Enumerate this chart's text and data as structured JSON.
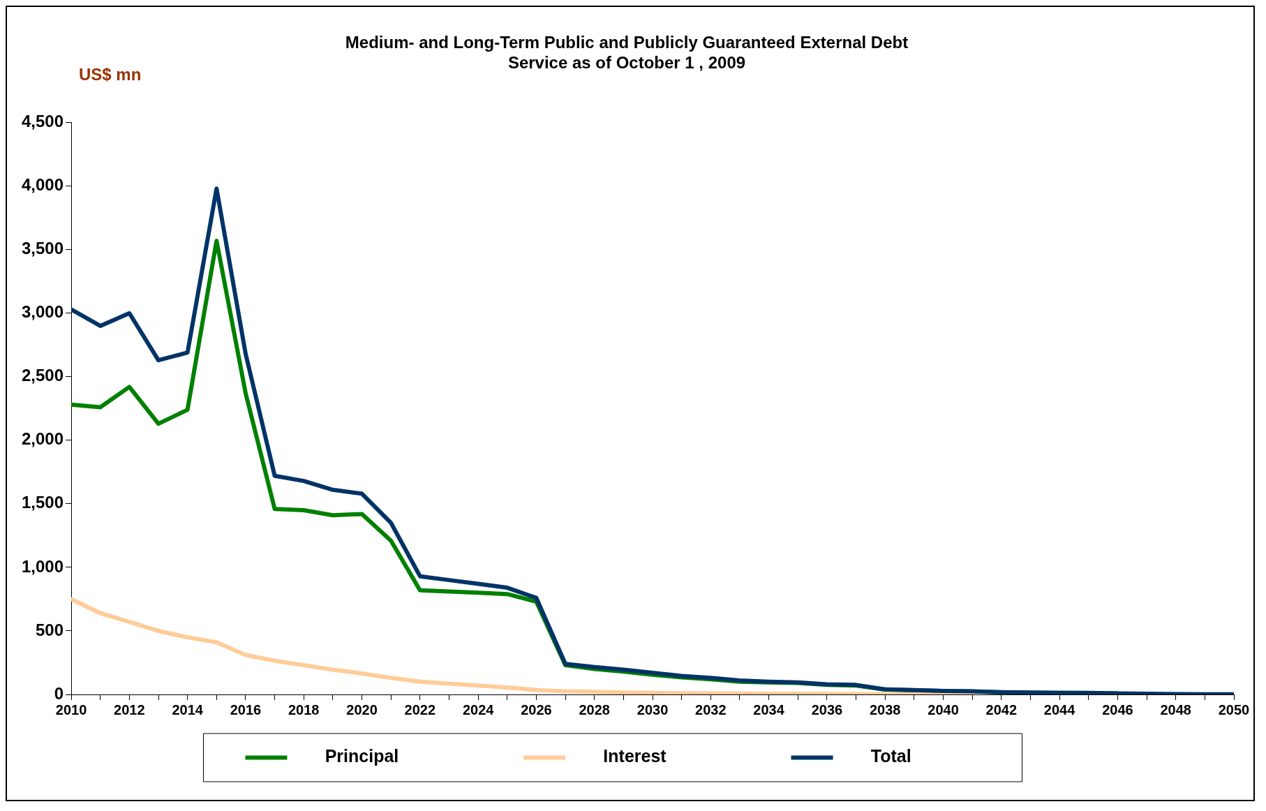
{
  "chart_data": {
    "type": "line",
    "title": "Medium- and Long-Term Public and Publicly Guaranteed External Debt\nService as of October 1 , 2009",
    "ylabel": "US$ mn",
    "x": [
      2010,
      2011,
      2012,
      2013,
      2014,
      2015,
      2016,
      2017,
      2018,
      2019,
      2020,
      2021,
      2022,
      2023,
      2024,
      2025,
      2026,
      2027,
      2028,
      2029,
      2030,
      2031,
      2032,
      2033,
      2034,
      2035,
      2036,
      2037,
      2038,
      2039,
      2040,
      2041,
      2042,
      2043,
      2044,
      2045,
      2046,
      2047,
      2048,
      2049,
      2050
    ],
    "series": [
      {
        "name": "Principal",
        "color": "#008000",
        "values": [
          2280,
          2260,
          2420,
          2130,
          2240,
          3570,
          2370,
          1460,
          1450,
          1410,
          1420,
          1210,
          820,
          810,
          800,
          790,
          730,
          230,
          200,
          180,
          155,
          135,
          120,
          100,
          95,
          90,
          75,
          70,
          38,
          33,
          27,
          24,
          17,
          14,
          12,
          11,
          8,
          null,
          null,
          null,
          null
        ]
      },
      {
        "name": "Interest",
        "color": "#ffcc99",
        "values": [
          750,
          640,
          570,
          500,
          450,
          410,
          310,
          265,
          230,
          195,
          165,
          130,
          100,
          85,
          70,
          55,
          35,
          25,
          20,
          15,
          12,
          10,
          8,
          7,
          6,
          5,
          4,
          3,
          2,
          2,
          1,
          1,
          null,
          null,
          null,
          null,
          null,
          null,
          null,
          null,
          null
        ]
      },
      {
        "name": "Total",
        "color": "#003366",
        "values": [
          3030,
          2900,
          3000,
          2630,
          2690,
          3980,
          2680,
          1720,
          1680,
          1610,
          1580,
          1350,
          930,
          900,
          870,
          840,
          760,
          240,
          215,
          195,
          170,
          145,
          130,
          110,
          100,
          95,
          80,
          75,
          40,
          35,
          28,
          25,
          18,
          15,
          12,
          12,
          8,
          6,
          3,
          2,
          2
        ]
      }
    ],
    "xlim": [
      2010,
      2050
    ],
    "xticks": [
      2010,
      {
        "value": 2011,
        "label": null
      },
      2012,
      {
        "value": 2013,
        "label": null
      },
      2014,
      {
        "value": 2015,
        "label": null
      },
      2016,
      {
        "value": 2017,
        "label": null
      },
      2018,
      {
        "value": 2019,
        "label": null
      },
      2020,
      {
        "value": 2021,
        "label": null
      },
      2022,
      {
        "value": 2023,
        "label": null
      },
      2024,
      {
        "value": 2025,
        "label": null
      },
      2026,
      {
        "value": 2027,
        "label": null
      },
      2028,
      {
        "value": 2029,
        "label": null
      },
      2030,
      {
        "value": 2031,
        "label": null
      },
      2032,
      {
        "value": 2033,
        "label": null
      },
      2034,
      {
        "value": 2035,
        "label": null
      },
      2036,
      {
        "value": 2037,
        "label": null
      },
      2038,
      {
        "value": 2039,
        "label": null
      },
      2040,
      {
        "value": 2041,
        "label": null
      },
      2042,
      {
        "value": 2043,
        "label": null
      },
      2044,
      {
        "value": 2045,
        "label": null
      },
      2046,
      {
        "value": 2047,
        "label": null
      },
      2048,
      {
        "value": 2049,
        "label": null
      },
      2050
    ],
    "ylim": [
      0,
      4500
    ],
    "yticks": [
      {
        "value": 0,
        "label": "0"
      },
      {
        "value": 500,
        "label": "500"
      },
      {
        "value": 1000,
        "label": "1,000"
      },
      {
        "value": 1500,
        "label": "1,500"
      },
      {
        "value": 2000,
        "label": "2,000"
      },
      {
        "value": 2500,
        "label": "2,500"
      },
      {
        "value": 3000,
        "label": "3,000"
      },
      {
        "value": 3500,
        "label": "3,500"
      },
      {
        "value": 4000,
        "label": "4,000"
      },
      {
        "value": 4500,
        "label": "4,500"
      }
    ],
    "grid": false,
    "legend": "bottom",
    "marker": "none",
    "line_style": "solid"
  }
}
